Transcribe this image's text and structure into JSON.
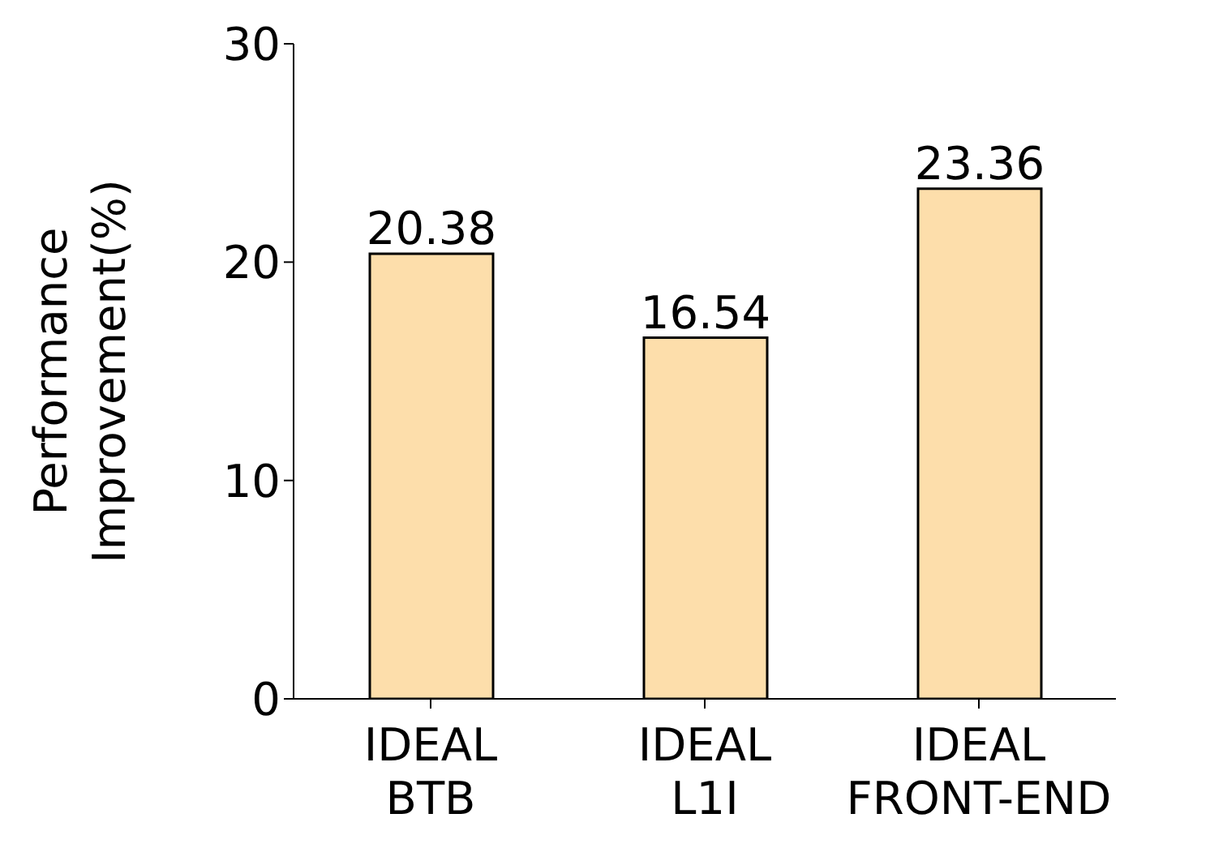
{
  "chart_data": {
    "type": "bar",
    "ylabel": "Performance\nImprovement(%)",
    "categories": [
      "IDEAL\nBTB",
      "IDEAL\nL1I",
      "IDEAL\nFRONT-END"
    ],
    "values": [
      20.38,
      16.54,
      23.36
    ],
    "color": "#fddeab",
    "ylim": [
      0,
      30
    ],
    "yticks": [
      0,
      10,
      20,
      30
    ],
    "grid": false,
    "data_labels": true
  }
}
